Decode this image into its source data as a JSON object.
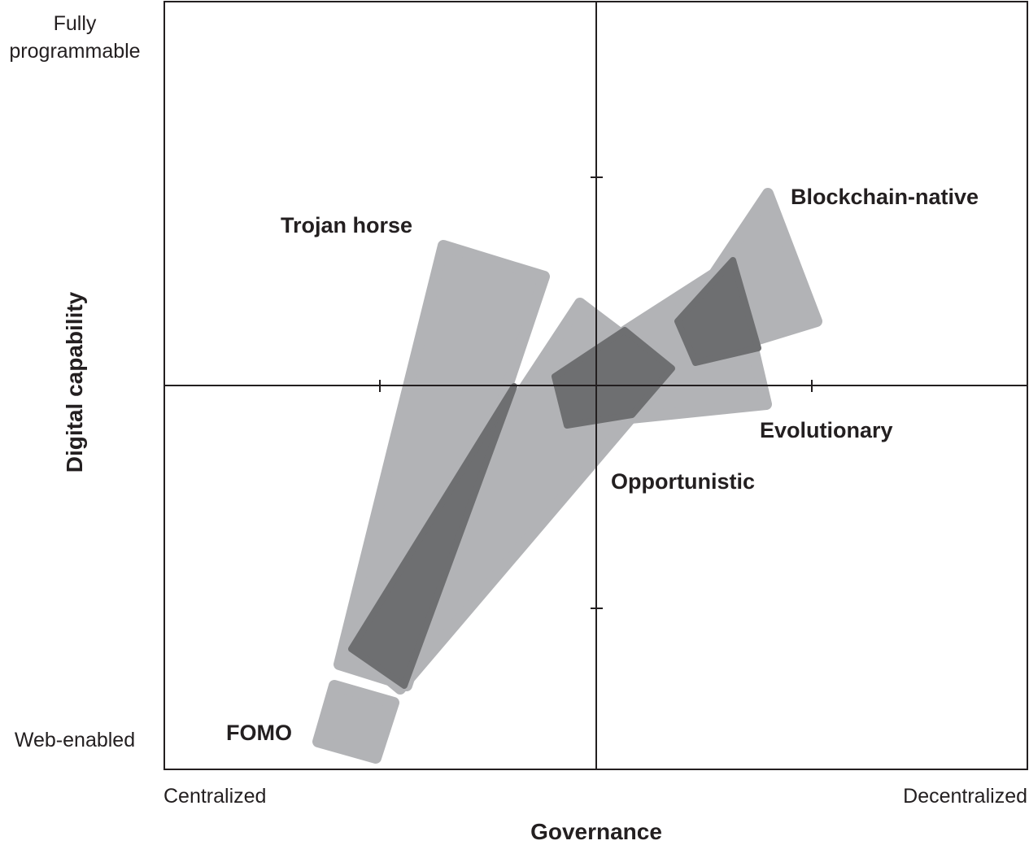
{
  "y_axis": {
    "title": "Digital capability",
    "top_label_line1": "Fully",
    "top_label_line2": "programmable",
    "bottom_label": "Web-enabled"
  },
  "x_axis": {
    "title": "Governance",
    "left_label": "Centralized",
    "right_label": "Decentralized"
  },
  "regions": [
    {
      "label": "Trojan horse",
      "fill": "#b2b3b6"
    },
    {
      "label": "Opportunistic",
      "fill": "#b2b3b6"
    },
    {
      "label": "Evolutionary",
      "fill": "#b2b3b6"
    },
    {
      "label": "Blockchain-native",
      "fill": "#b2b3b6"
    },
    {
      "label": "FOMO",
      "fill": "#b2b3b6"
    }
  ],
  "overlap_fill": "#6e6f71",
  "line_color": "#231f20"
}
